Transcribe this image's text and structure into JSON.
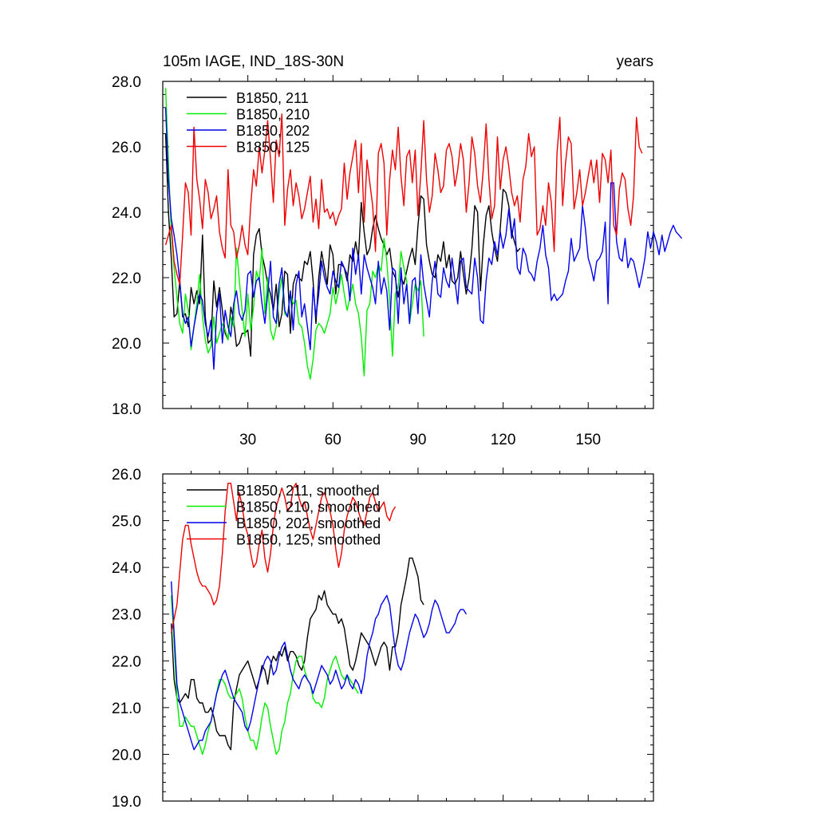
{
  "page": {
    "title_left": "105m IAGE, IND_18S-30N",
    "title_right": "years"
  },
  "chart_data": [
    {
      "type": "line",
      "title": "105m IAGE, IND_18S-30N",
      "units": "years",
      "xlim": [
        0,
        173
      ],
      "ylim": [
        18,
        28
      ],
      "x_ticks": [
        30,
        60,
        90,
        120,
        150
      ],
      "x_tick_labels": [
        "30",
        "60",
        "90",
        "120",
        "150"
      ],
      "y_ticks": [
        18,
        20,
        22,
        24,
        26,
        28
      ],
      "y_tick_labels": [
        "18.0",
        "20.0",
        "22.0",
        "24.0",
        "26.0",
        "28.0"
      ],
      "legend_position": "top-left",
      "series": [
        {
          "name": "B1850, 211",
          "color": "#000000",
          "x_start": 1,
          "values": [
            26.4,
            24.0,
            22.6,
            20.8,
            20.9,
            21.9,
            20.8,
            20.9,
            20.5,
            21.7,
            21.2,
            21.6,
            21.2,
            23.3,
            20.8,
            20.0,
            20.1,
            21.9,
            21.1,
            21.7,
            21.0,
            20.3,
            20.1,
            21.1,
            20.7,
            19.9,
            20.0,
            20.3,
            20.3,
            20.4,
            19.6,
            22.7,
            23.3,
            23.5,
            22.7,
            22.3,
            21.8,
            21.5,
            21.0,
            21.8,
            20.5,
            20.9,
            22.2,
            22.1,
            20.3,
            21.8,
            22.1,
            22.0,
            21.9,
            22.5,
            22.4,
            22.8,
            21.9,
            20.6,
            22.0,
            22.8,
            22.3,
            21.8,
            23.0,
            22.7,
            21.5,
            22.4,
            22.4,
            22.3,
            21.9,
            22.7,
            22.5,
            23.1,
            22.6,
            24.3,
            23.4,
            22.7,
            22.9,
            23.5,
            23.9,
            23.5,
            23.2,
            23.0,
            22.7,
            22.9,
            22.2,
            22.0,
            21.4,
            22.0,
            21.8,
            22.2,
            22.6,
            22.9,
            22.4,
            23.6,
            24.5,
            24.4,
            23.0,
            22.5,
            22.1,
            22.0,
            22.7,
            22.5,
            23.1,
            22.3,
            22.7,
            21.9,
            21.8,
            22.0,
            22.8,
            22.1,
            21.5,
            22.0,
            22.9,
            24.2,
            24.0,
            21.6,
            23.0,
            23.9,
            24.2,
            23.4,
            22.9,
            22.5,
            23.5,
            24.7,
            24.6,
            24.2,
            23.4,
            23.1,
            22.8,
            22.9
          ]
        },
        {
          "name": "B1850, 210",
          "color": "#00ee00",
          "x_start": 1,
          "values": [
            27.8,
            25.5,
            23.4,
            22.3,
            21.4,
            20.6,
            20.3,
            21.5,
            21.0,
            19.8,
            20.5,
            21.2,
            22.1,
            20.8,
            20.1,
            19.7,
            19.9,
            20.8,
            20.0,
            20.3,
            20.6,
            20.4,
            20.1,
            20.8,
            20.5,
            22.9,
            21.9,
            21.0,
            20.2,
            21.5,
            20.4,
            21.1,
            22.2,
            21.9,
            22.9,
            20.9,
            22.0,
            20.4,
            20.1,
            20.5,
            21.5,
            22.0,
            20.9,
            20.8,
            21.5,
            21.2,
            21.3,
            20.6,
            20.5,
            20.0,
            19.3,
            18.9,
            19.5,
            20.4,
            20.6,
            20.5,
            20.3,
            20.6,
            20.9,
            21.7,
            21.2,
            21.6,
            22.1,
            21.5,
            21.0,
            21.4,
            21.8,
            21.2,
            20.9,
            20.2,
            19.0,
            21.0,
            21.2,
            22.2,
            22.0,
            22.4,
            22.2,
            23.2,
            22.5,
            21.3,
            19.6,
            21.5,
            21.7,
            22.8,
            22.3,
            21.9,
            20.6,
            21.2,
            21.8,
            21.6,
            21.9,
            20.2
          ]
        },
        {
          "name": "B1850, 202",
          "color": "#0000ee",
          "x_start": 1,
          "values": [
            27.2,
            25.0,
            23.8,
            23.3,
            22.7,
            21.9,
            20.9,
            20.6,
            20.8,
            19.9,
            20.5,
            21.0,
            21.5,
            21.3,
            20.6,
            20.2,
            20.7,
            19.2,
            20.9,
            21.5,
            20.0,
            21.0,
            20.5,
            20.2,
            21.2,
            21.6,
            20.9,
            20.7,
            21.0,
            22.1,
            22.2,
            21.4,
            21.9,
            22.0,
            21.2,
            20.6,
            21.5,
            22.5,
            20.8,
            20.6,
            21.8,
            22.3,
            21.0,
            20.8,
            21.6,
            20.4,
            21.8,
            22.2,
            20.8,
            21.2,
            20.5,
            19.8,
            21.7,
            20.8,
            21.5,
            22.5,
            22.0,
            21.7,
            21.5,
            22.2,
            21.9,
            21.7,
            22.5,
            22.3,
            22.1,
            21.3,
            22.9,
            22.1,
            22.7,
            21.5,
            22.7,
            22.3,
            22.0,
            21.7,
            21.2,
            22.5,
            21.5,
            22.0,
            21.6,
            20.4,
            22.3,
            22.2,
            20.6,
            22.3,
            21.2,
            21.8,
            20.6,
            21.9,
            22.0,
            20.9,
            22.7,
            21.8,
            21.3,
            20.8,
            21.9,
            22.5,
            21.5,
            21.4,
            22.3,
            21.9,
            21.7,
            22.6,
            21.9,
            21.2,
            22.5,
            22.6,
            21.7,
            21.6,
            21.5,
            22.6,
            22.0,
            20.7,
            20.6,
            21.9,
            22.6,
            22.4,
            23.1,
            22.7,
            23.4,
            22.9,
            23.3,
            24.1,
            23.2,
            23.8,
            22.3,
            22.1,
            22.9,
            22.7,
            22.2,
            22.1,
            21.9,
            22.5,
            22.9,
            23.6,
            22.7,
            22.3,
            21.3,
            21.5,
            21.3,
            21.4,
            21.5,
            21.9,
            22.2,
            23.2,
            22.5,
            22.7,
            22.9,
            24.2,
            23.5,
            22.6,
            22.3,
            21.9,
            22.5,
            22.6,
            22.8,
            23.7,
            21.2,
            24.9,
            24.9,
            23.1,
            22.6,
            22.5,
            23.2,
            22.3,
            22.6,
            22.5,
            22.1,
            21.7,
            22.1,
            22.6,
            23.4,
            22.9,
            23.4,
            23.1,
            22.7,
            23.3,
            22.8,
            23.1,
            23.4,
            23.6,
            23.4,
            23.3,
            23.2
          ]
        },
        {
          "name": "B1850, 125",
          "color": "#ee0000",
          "x_start": 1,
          "values": [
            23.0,
            23.3,
            23.6,
            22.5,
            22.1,
            21.8,
            23.3,
            24.9,
            24.6,
            23.3,
            26.6,
            25.0,
            24.4,
            23.5,
            25.0,
            24.6,
            23.8,
            24.1,
            24.5,
            23.4,
            22.9,
            22.6,
            25.3,
            23.6,
            23.4,
            22.6,
            23.0,
            23.6,
            23.0,
            22.7,
            24.2,
            25.3,
            24.8,
            26.0,
            25.2,
            25.9,
            26.8,
            25.6,
            24.3,
            26.2,
            25.7,
            27.0,
            23.6,
            24.7,
            25.3,
            24.2,
            24.9,
            24.5,
            23.8,
            24.1,
            24.6,
            25.1,
            23.7,
            24.4,
            23.5,
            25.0,
            24.0,
            24.1,
            23.8,
            24.0,
            23.6,
            23.9,
            24.1,
            25.5,
            24.4,
            25.2,
            25.7,
            26.2,
            24.6,
            26.1,
            23.7,
            25.6,
            24.9,
            24.2,
            22.8,
            25.8,
            26.1,
            25.5,
            23.3,
            25.0,
            25.9,
            25.3,
            26.6,
            25.1,
            24.2,
            25.7,
            25.9,
            24.9,
            25.9,
            23.9,
            25.2,
            26.8,
            25.0,
            24.0,
            24.5,
            25.8,
            25.3,
            24.6,
            24.8,
            25.9,
            26.1,
            25.7,
            24.8,
            25.3,
            26.1,
            25.6,
            24.0,
            24.9,
            26.3,
            25.8,
            24.8,
            24.3,
            25.3,
            26.7,
            25.0,
            23.8,
            24.2,
            26.3,
            24.7,
            25.6,
            26.0,
            25.4,
            24.6,
            24.2,
            24.5,
            23.7,
            25.0,
            25.4,
            26.4,
            25.7,
            26.0,
            23.3,
            23.5,
            24.2,
            23.6,
            24.9,
            24.3,
            22.8,
            25.8,
            26.9,
            24.2,
            25.5,
            26.3,
            26.1,
            24.1,
            24.6,
            25.3,
            24.2,
            24.6,
            25.1,
            25.6,
            24.9,
            25.6,
            24.3,
            25.8,
            25.6,
            24.9,
            25.9,
            23.6,
            23.3,
            24.7,
            25.2,
            25.0,
            24.1,
            23.6,
            24.5,
            26.9,
            26.0,
            25.8
          ]
        }
      ]
    },
    {
      "type": "line",
      "xlim": [
        0,
        173
      ],
      "ylim": [
        19,
        26
      ],
      "y_ticks": [
        19,
        20,
        21,
        22,
        23,
        24,
        25,
        26
      ],
      "y_tick_labels": [
        "19.0",
        "20.0",
        "21.0",
        "22.0",
        "23.0",
        "24.0",
        "25.0",
        "26.0"
      ],
      "legend_position": "top-left",
      "series": [
        {
          "name": "B1850, 211, smoothed",
          "color": "#000000",
          "x_start": 3,
          "values": [
            22.8,
            21.6,
            21.2,
            21.1,
            21.2,
            21.3,
            21.2,
            21.6,
            21.6,
            21.2,
            21.1,
            21.1,
            20.9,
            20.9,
            21.0,
            20.8,
            20.5,
            20.4,
            20.4,
            20.4,
            20.2,
            20.1,
            21.1,
            21.4,
            21.7,
            21.8,
            21.9,
            22.0,
            21.8,
            21.6,
            21.4,
            21.6,
            21.9,
            21.8,
            21.5,
            21.9,
            22.1,
            22.0,
            22.2,
            22.1,
            22.3,
            22.0,
            22.2,
            22.2,
            22.1,
            21.9,
            21.8,
            22.0,
            22.5,
            22.9,
            23.0,
            23.1,
            23.4,
            23.3,
            23.5,
            23.2,
            23.1,
            23.0,
            23.0,
            22.8,
            22.9,
            22.7,
            22.3,
            21.9,
            21.8,
            22.0,
            22.3,
            22.6,
            22.5,
            22.4,
            22.3,
            22.1,
            21.9,
            22.1,
            22.3,
            22.4,
            22.3,
            21.8,
            22.3,
            22.3,
            22.6,
            23.2,
            23.5,
            23.8,
            24.2,
            24.2,
            24.0,
            23.8,
            23.3,
            23.2
          ]
        },
        {
          "name": "B1850, 210, smoothed",
          "color": "#00ee00",
          "x_start": 3,
          "values": [
            23.4,
            22.4,
            21.2,
            20.6,
            20.6,
            20.8,
            20.7,
            20.6,
            20.6,
            20.4,
            20.2,
            20.0,
            20.2,
            20.5,
            20.7,
            21.0,
            21.3,
            21.6,
            21.6,
            21.5,
            21.3,
            21.2,
            21.2,
            21.3,
            21.4,
            21.2,
            20.8,
            20.5,
            20.3,
            20.3,
            20.1,
            20.4,
            20.8,
            21.1,
            21.0,
            20.6,
            20.3,
            20.0,
            20.1,
            20.5,
            20.7,
            21.1,
            21.3,
            21.7,
            22.0,
            22.1,
            22.1,
            21.8,
            21.6,
            21.5,
            21.2,
            21.1,
            21.1,
            21.0,
            21.2,
            21.6,
            21.8,
            22.0,
            22.1,
            21.9,
            21.7,
            21.6,
            21.7,
            21.6,
            21.5,
            21.4,
            21.3
          ]
        },
        {
          "name": "B1850, 202, smoothed",
          "color": "#0000ee",
          "x_start": 3,
          "values": [
            23.7,
            22.6,
            21.5,
            21.1,
            20.9,
            20.7,
            20.5,
            20.3,
            20.1,
            20.2,
            20.3,
            20.3,
            20.5,
            20.6,
            20.7,
            21.0,
            21.3,
            21.5,
            21.7,
            21.8,
            21.6,
            21.4,
            21.2,
            21.1,
            21.0,
            20.9,
            20.6,
            20.5,
            20.7,
            21.0,
            21.3,
            21.6,
            21.8,
            22.0,
            22.1,
            22.0,
            21.7,
            21.8,
            22.1,
            22.3,
            22.4,
            22.1,
            21.8,
            21.6,
            21.5,
            21.4,
            21.6,
            21.7,
            21.6,
            21.5,
            21.3,
            21.5,
            21.7,
            21.9,
            21.8,
            21.7,
            21.5,
            21.6,
            21.8,
            21.6,
            21.4,
            21.5,
            21.7,
            21.5,
            21.4,
            21.6,
            21.5,
            21.3,
            21.6,
            22.1,
            22.4,
            22.6,
            22.9,
            23.0,
            23.2,
            23.3,
            23.4,
            23.2,
            22.7,
            22.2,
            21.9,
            21.8,
            22.0,
            22.3,
            22.6,
            22.8,
            23.0,
            22.9,
            22.7,
            22.5,
            22.6,
            22.8,
            23.1,
            23.3,
            23.2,
            23.0,
            22.8,
            22.6,
            22.6,
            22.7,
            22.8,
            23.0,
            23.1,
            23.1,
            23.0
          ]
        },
        {
          "name": "B1850, 125, smoothed",
          "color": "#ee0000",
          "x_start": 3,
          "values": [
            22.6,
            22.9,
            23.2,
            23.9,
            24.6,
            24.9,
            24.9,
            24.5,
            24.2,
            23.9,
            23.7,
            23.6,
            23.6,
            23.5,
            23.4,
            23.2,
            23.3,
            23.6,
            24.3,
            25.2,
            25.8,
            25.8,
            25.4,
            25.0,
            25.6,
            25.3,
            24.9,
            24.7,
            24.3,
            24.0,
            24.1,
            24.5,
            24.8,
            24.2,
            23.9,
            24.3,
            24.9,
            25.3,
            25.5,
            25.7,
            25.5,
            25.2,
            25.3,
            25.7,
            25.8,
            25.5,
            25.3,
            25.4,
            25.1,
            24.8,
            24.6,
            24.9,
            25.2,
            25.5,
            25.6,
            25.4,
            25.2,
            24.9,
            24.4,
            24.0,
            24.3,
            24.8,
            25.1,
            25.3,
            25.5,
            25.4,
            25.2,
            25.0,
            24.9,
            25.2,
            25.5,
            25.6,
            25.4,
            25.2,
            25.3,
            25.4,
            25.1,
            25.0,
            25.2,
            25.3
          ]
        }
      ]
    }
  ]
}
